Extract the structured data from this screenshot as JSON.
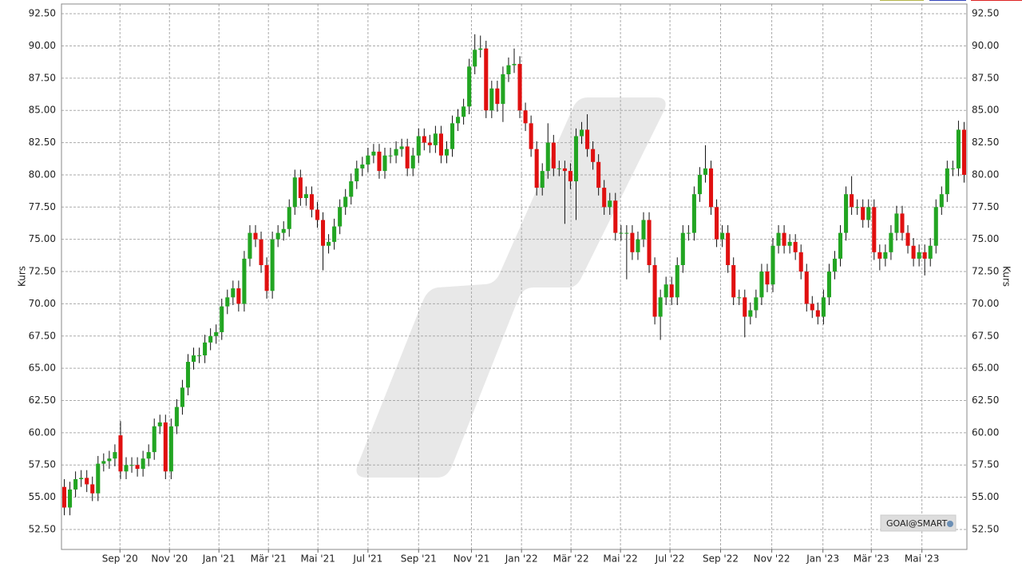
{
  "chart_data": {
    "type": "candlestick",
    "y_label": "Kurs",
    "badge": "GOAI@SMART",
    "up_color": "#22a522",
    "down_color": "#e01010",
    "grid": true,
    "ylim": [
      50.95,
      93.25
    ],
    "yticks": [
      {
        "value": 52.5,
        "label": "52.50"
      },
      {
        "value": 55,
        "label": "55.00"
      },
      {
        "value": 57.5,
        "label": "57.50"
      },
      {
        "value": 60,
        "label": "60.00"
      },
      {
        "value": 62.5,
        "label": "62.50"
      },
      {
        "value": 65,
        "label": "65.00"
      },
      {
        "value": 67.5,
        "label": "67.50"
      },
      {
        "value": 70,
        "label": "70.00"
      },
      {
        "value": 72.5,
        "label": "72.50"
      },
      {
        "value": 75,
        "label": "75.00"
      },
      {
        "value": 77.5,
        "label": "77.50"
      },
      {
        "value": 80,
        "label": "80.00"
      },
      {
        "value": 82.5,
        "label": "82.50"
      },
      {
        "value": 85,
        "label": "85.00"
      },
      {
        "value": 87.5,
        "label": "87.50"
      },
      {
        "value": 90,
        "label": "90.00"
      },
      {
        "value": 92.5,
        "label": "92.50"
      }
    ],
    "xlim": [
      -0.5,
      160.5
    ],
    "xticks": [
      {
        "value": 9.9,
        "label": "Sep '20"
      },
      {
        "value": 18.7,
        "label": "Nov '20"
      },
      {
        "value": 27.5,
        "label": "Jan '21"
      },
      {
        "value": 36.3,
        "label": "Mär '21"
      },
      {
        "value": 45.1,
        "label": "Mai '21"
      },
      {
        "value": 54.0,
        "label": "Jul '21"
      },
      {
        "value": 63.0,
        "label": "Sep '21"
      },
      {
        "value": 72.4,
        "label": "Nov '21"
      },
      {
        "value": 81.3,
        "label": "Jan '22"
      },
      {
        "value": 90.1,
        "label": "Mär '22"
      },
      {
        "value": 98.9,
        "label": "Mai '22"
      },
      {
        "value": 107.7,
        "label": "Jul '22"
      },
      {
        "value": 116.7,
        "label": "Sep '22"
      },
      {
        "value": 125.8,
        "label": "Nov '22"
      },
      {
        "value": 134.9,
        "label": "Jan '23"
      },
      {
        "value": 143.5,
        "label": "Mär '23"
      },
      {
        "value": 152.5,
        "label": "Mai '23"
      }
    ],
    "open": [
      55.8,
      54.2,
      55.6,
      56.4,
      56.5,
      56.0,
      55.3,
      57.6,
      57.8,
      58.0,
      59.8,
      57.0,
      57.5,
      57.5,
      57.2,
      58.0,
      58.5,
      60.5,
      60.8,
      57.0,
      60.5,
      62.0,
      63.5,
      65.5,
      66.0,
      66.0,
      67.0,
      67.5,
      67.8,
      69.8,
      70.5,
      71.2,
      70.0,
      73.5,
      75.5,
      75.0,
      73.0,
      71.0,
      75.0,
      75.5,
      75.8,
      77.5,
      79.8,
      78.2,
      78.5,
      77.3,
      76.5,
      74.5,
      74.8,
      76.0,
      77.5,
      78.3,
      79.5,
      80.5,
      80.8,
      81.5,
      81.8,
      80.3,
      81.5,
      81.5,
      82.0,
      82.2,
      80.5,
      81.5,
      83.0,
      82.5,
      82.3,
      83.2,
      81.5,
      82.0,
      84.0,
      84.5,
      85.3,
      88.4,
      89.7,
      89.8,
      85.0,
      86.7,
      85.5,
      87.8,
      88.5,
      88.6,
      85.0,
      84.0,
      82.0,
      79.0,
      80.3,
      82.5,
      80.5,
      80.5,
      80.3,
      79.5,
      83.0,
      83.5,
      82.0,
      81.0,
      79.0,
      77.5,
      78.0,
      75.5,
      75.5,
      75.5,
      74.0,
      75.0,
      76.5,
      73.0,
      69.0,
      70.5,
      71.5,
      70.5,
      73.0,
      75.5,
      75.5,
      78.5,
      80.0,
      80.5,
      77.5,
      75.0,
      75.5,
      73.0,
      70.5,
      70.5,
      69.0,
      69.5,
      70.5,
      72.5,
      71.5,
      74.5,
      75.5,
      74.5,
      74.8,
      74.0,
      72.5,
      70.0,
      69.5,
      69.0,
      70.5,
      72.5,
      73.5,
      75.5,
      78.5,
      77.5,
      77.5,
      76.5,
      77.5,
      74.0,
      73.5,
      74.0,
      75.5,
      77.0,
      75.5,
      74.5,
      73.5,
      74.0,
      73.5,
      74.5,
      77.5,
      78.5,
      80.5,
      80.5,
      83.5
    ],
    "high": [
      56.4,
      56.2,
      57.0,
      57.1,
      57.1,
      56.6,
      58.2,
      58.4,
      58.6,
      59.1,
      60.9,
      58.1,
      58.1,
      58.1,
      58.6,
      59.1,
      61.1,
      61.4,
      61.4,
      61.1,
      62.6,
      64.1,
      66.1,
      66.6,
      66.6,
      67.6,
      68.1,
      68.4,
      70.4,
      71.1,
      71.8,
      71.8,
      74.1,
      76.1,
      76.1,
      75.6,
      73.6,
      75.6,
      76.1,
      76.4,
      78.1,
      80.4,
      80.4,
      79.1,
      79.1,
      77.9,
      77.1,
      75.4,
      76.6,
      78.1,
      78.9,
      80.1,
      81.1,
      81.4,
      82.1,
      82.4,
      82.4,
      82.1,
      82.1,
      82.6,
      82.8,
      82.8,
      82.1,
      83.6,
      83.6,
      83.1,
      83.8,
      83.8,
      82.6,
      84.6,
      85.1,
      85.9,
      89.0,
      90.9,
      90.8,
      90.4,
      87.3,
      87.3,
      88.4,
      89.1,
      89.8,
      89.2,
      85.6,
      84.6,
      82.6,
      80.9,
      84.0,
      83.1,
      81.1,
      81.1,
      80.9,
      83.6,
      84.1,
      84.7,
      82.6,
      81.6,
      79.6,
      78.6,
      78.6,
      76.1,
      76.1,
      76.1,
      75.6,
      77.1,
      77.1,
      73.6,
      71.1,
      72.1,
      72.1,
      73.6,
      76.1,
      76.1,
      79.1,
      80.6,
      82.3,
      81.1,
      78.1,
      76.1,
      76.1,
      73.6,
      71.1,
      71.1,
      70.1,
      71.1,
      73.1,
      73.1,
      75.1,
      76.1,
      76.1,
      75.4,
      75.4,
      74.6,
      73.1,
      70.6,
      70.1,
      71.1,
      73.1,
      74.1,
      76.1,
      79.1,
      79.9,
      78.1,
      78.1,
      78.1,
      78.1,
      74.6,
      74.6,
      76.1,
      77.6,
      77.6,
      76.1,
      75.1,
      74.6,
      74.6,
      75.1,
      78.1,
      79.1,
      81.1,
      81.1,
      84.2,
      84.1
    ],
    "low": [
      53.6,
      53.6,
      55.0,
      55.8,
      55.4,
      54.7,
      54.7,
      57.0,
      57.2,
      57.4,
      56.4,
      56.4,
      56.9,
      56.6,
      56.6,
      57.4,
      57.9,
      59.9,
      56.4,
      56.4,
      59.9,
      61.4,
      62.9,
      64.9,
      65.4,
      65.4,
      66.4,
      66.9,
      67.2,
      69.2,
      69.9,
      69.4,
      69.4,
      72.9,
      74.4,
      72.4,
      70.4,
      70.4,
      74.4,
      74.9,
      75.2,
      76.9,
      77.6,
      77.6,
      76.7,
      75.9,
      72.6,
      73.9,
      74.2,
      75.4,
      76.9,
      77.7,
      78.9,
      79.9,
      80.2,
      80.9,
      79.7,
      79.7,
      80.9,
      80.9,
      81.4,
      79.9,
      79.9,
      80.9,
      81.9,
      81.7,
      81.7,
      80.9,
      80.9,
      81.4,
      83.4,
      83.9,
      84.7,
      87.8,
      89.1,
      84.4,
      84.4,
      84.9,
      84.1,
      87.2,
      87.9,
      84.4,
      83.4,
      81.4,
      78.4,
      78.4,
      79.7,
      79.9,
      79.9,
      76.2,
      78.9,
      76.5,
      82.4,
      81.4,
      80.4,
      78.4,
      76.9,
      76.9,
      74.9,
      74.9,
      71.9,
      73.4,
      73.4,
      74.4,
      72.4,
      68.4,
      67.2,
      69.9,
      69.9,
      69.9,
      72.4,
      74.9,
      74.9,
      77.9,
      79.4,
      76.9,
      74.4,
      74.4,
      72.4,
      69.9,
      69.9,
      67.4,
      68.4,
      68.9,
      69.9,
      70.9,
      70.9,
      73.9,
      73.9,
      73.9,
      73.4,
      71.9,
      69.4,
      68.9,
      68.4,
      68.4,
      69.9,
      71.9,
      72.9,
      74.9,
      76.9,
      76.9,
      75.9,
      75.9,
      73.4,
      72.6,
      72.9,
      73.4,
      74.9,
      74.9,
      73.9,
      72.9,
      72.9,
      72.2,
      72.9,
      73.9,
      76.9,
      77.9,
      79.9,
      79.9,
      79.4
    ],
    "close": [
      54.2,
      55.6,
      56.4,
      56.5,
      56.0,
      55.3,
      57.6,
      57.8,
      58.0,
      58.5,
      57.0,
      57.5,
      57.5,
      57.2,
      58.0,
      58.5,
      60.5,
      60.8,
      57.0,
      60.5,
      62.0,
      63.5,
      65.5,
      66.0,
      66.0,
      67.0,
      67.5,
      67.8,
      69.8,
      70.5,
      71.2,
      70.0,
      73.5,
      75.5,
      75.0,
      73.0,
      71.0,
      75.0,
      75.5,
      75.8,
      77.5,
      79.8,
      78.2,
      78.5,
      77.3,
      76.5,
      74.5,
      74.8,
      76.0,
      77.5,
      78.3,
      79.5,
      80.5,
      80.8,
      81.5,
      81.8,
      80.3,
      81.5,
      81.5,
      82.0,
      82.2,
      80.5,
      81.5,
      83.0,
      82.5,
      82.3,
      83.2,
      81.5,
      82.0,
      84.0,
      84.5,
      85.3,
      88.4,
      89.7,
      89.8,
      85.0,
      86.7,
      85.5,
      87.8,
      88.5,
      88.6,
      85.0,
      84.0,
      82.0,
      79.0,
      80.3,
      82.5,
      80.5,
      80.5,
      80.3,
      79.5,
      83.0,
      83.5,
      82.0,
      81.0,
      79.0,
      77.5,
      78.0,
      75.5,
      75.5,
      75.5,
      74.0,
      75.0,
      76.5,
      73.0,
      69.0,
      70.5,
      71.5,
      70.5,
      73.0,
      75.5,
      75.5,
      78.5,
      80.0,
      80.5,
      77.5,
      75.0,
      75.5,
      73.0,
      70.5,
      70.5,
      69.0,
      69.5,
      70.5,
      72.5,
      71.5,
      74.5,
      75.5,
      74.5,
      74.8,
      74.0,
      72.5,
      70.0,
      69.5,
      69.0,
      70.5,
      72.5,
      73.5,
      75.5,
      78.5,
      77.5,
      77.5,
      76.5,
      77.5,
      74.0,
      73.5,
      74.0,
      75.5,
      77.0,
      75.5,
      74.5,
      73.5,
      74.0,
      73.5,
      74.5,
      77.5,
      78.5,
      80.5,
      80.5,
      83.5,
      80.0
    ]
  }
}
